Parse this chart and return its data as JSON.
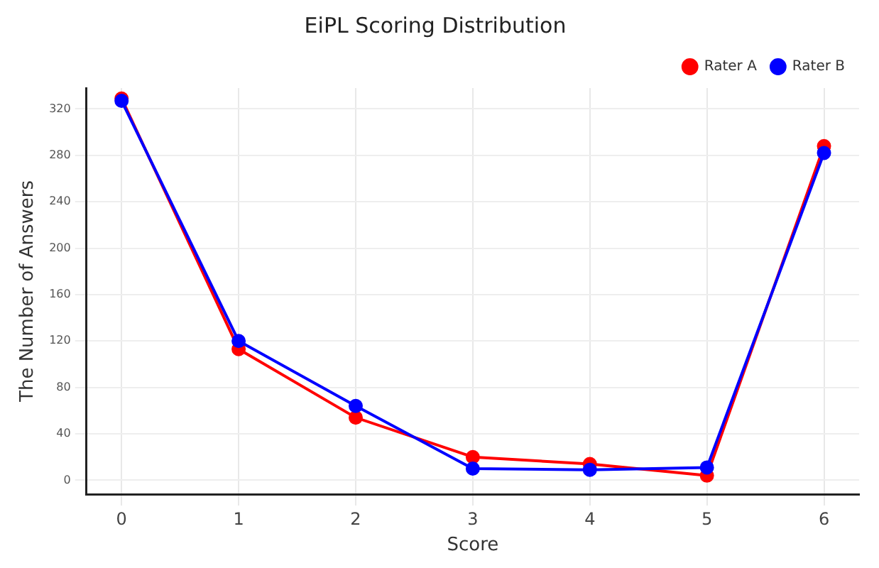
{
  "chart_data": {
    "type": "line",
    "title": "EiPL Scoring Distribution",
    "xlabel": "Score",
    "ylabel": "The Number of Answers",
    "x": [
      0,
      1,
      2,
      3,
      4,
      5,
      6
    ],
    "series": [
      {
        "name": "Rater A",
        "color": "#ff0000",
        "values": [
          329,
          113,
          54,
          20,
          14,
          4,
          288
        ]
      },
      {
        "name": "Rater B",
        "color": "#0000ff",
        "values": [
          327,
          120,
          64,
          10,
          9,
          11,
          282
        ]
      }
    ],
    "xlim": [
      -0.3,
      6.3
    ],
    "xticks": [
      0,
      1,
      2,
      3,
      4,
      5,
      6
    ],
    "ylim": [
      -12,
      338
    ],
    "yticks": [
      0,
      40,
      80,
      120,
      160,
      200,
      240,
      280,
      320
    ],
    "grid": true,
    "legend": "top right",
    "marker": "circle",
    "line_style": "solid"
  }
}
